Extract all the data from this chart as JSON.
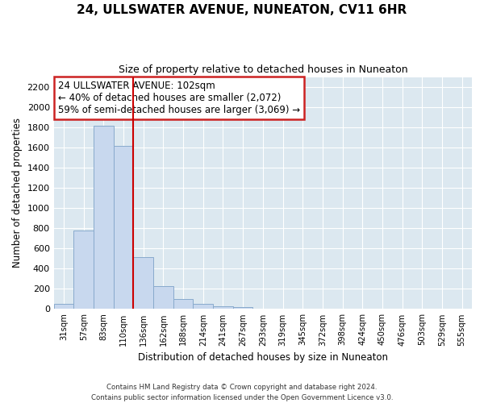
{
  "title": "24, ULLSWATER AVENUE, NUNEATON, CV11 6HR",
  "subtitle": "Size of property relative to detached houses in Nuneaton",
  "xlabel": "Distribution of detached houses by size in Nuneaton",
  "ylabel": "Number of detached properties",
  "bin_labels": [
    "31sqm",
    "57sqm",
    "83sqm",
    "110sqm",
    "136sqm",
    "162sqm",
    "188sqm",
    "214sqm",
    "241sqm",
    "267sqm",
    "293sqm",
    "319sqm",
    "345sqm",
    "372sqm",
    "398sqm",
    "424sqm",
    "450sqm",
    "476sqm",
    "503sqm",
    "529sqm",
    "555sqm"
  ],
  "bar_heights": [
    50,
    775,
    1820,
    1620,
    515,
    230,
    100,
    55,
    30,
    20,
    5,
    0,
    0,
    0,
    0,
    0,
    0,
    0,
    0,
    0,
    0
  ],
  "bar_color": "#c8d8ee",
  "bar_edge_color": "#88aacc",
  "annotation_line1": "24 ULLSWATER AVENUE: 102sqm",
  "annotation_line2": "← 40% of detached houses are smaller (2,072)",
  "annotation_line3": "59% of semi-detached houses are larger (3,069) →",
  "annotation_box_color": "#cc2222",
  "ylim": [
    0,
    2300
  ],
  "yticks": [
    0,
    200,
    400,
    600,
    800,
    1000,
    1200,
    1400,
    1600,
    1800,
    2000,
    2200
  ],
  "footer_line1": "Contains HM Land Registry data © Crown copyright and database right 2024.",
  "footer_line2": "Contains public sector information licensed under the Open Government Licence v3.0.",
  "fig_bg_color": "#ffffff",
  "plot_bg_color": "#dce8f0",
  "grid_color": "#ffffff",
  "vline_x": 3.5
}
